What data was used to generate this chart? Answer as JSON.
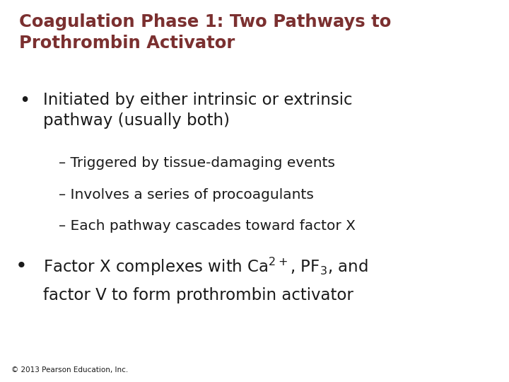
{
  "title_line1": "Coagulation Phase 1: Two Pathways to",
  "title_line2": "Prothrombin Activator",
  "title_color": "#7B3030",
  "background_color": "#FFFFFF",
  "bullet1_line1": "Initiated by either intrinsic or extrinsic",
  "bullet1_line2": "pathway (usually both)",
  "sub1": "– Triggered by tissue-damaging events",
  "sub2": "– Involves a series of procoagulants",
  "sub3": "– Each pathway cascades toward factor X",
  "bullet2_line1": "Factor X complexes with Ca$^{2+}$, PF$_{3}$, and",
  "bullet2_line2": "factor V to form prothrombin activator",
  "body_color": "#1A1A1A",
  "footer": "© 2013 Pearson Education, Inc.",
  "footer_color": "#1A1A1A",
  "title_fontsize": 17.5,
  "body_fontsize": 16.5,
  "sub_fontsize": 14.5,
  "footer_fontsize": 7.5
}
